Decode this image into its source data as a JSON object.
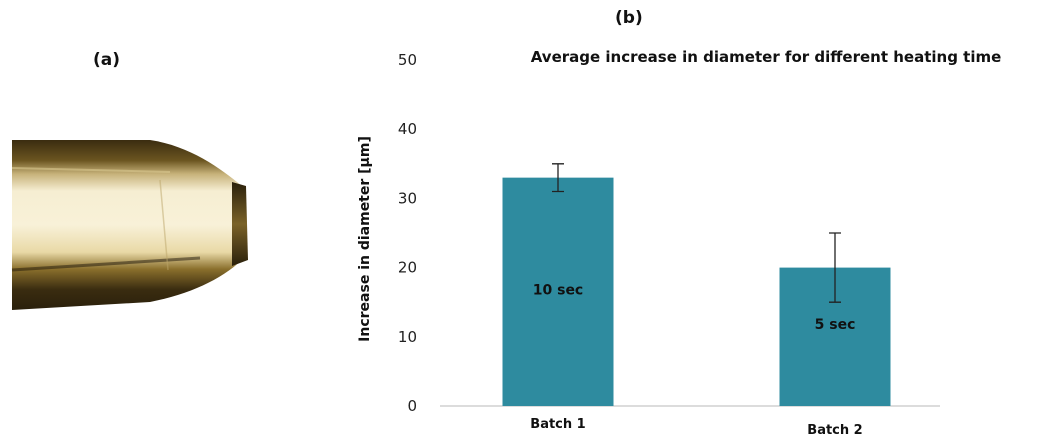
{
  "panels": {
    "a_label": "(a)",
    "b_label": "(b)"
  },
  "photo": {
    "icon": "glass-tube-tip-photo"
  },
  "colors": {
    "bar": "#2e8b9f",
    "axis": "#b8b8b8",
    "error": "#222222"
  },
  "chart_data": {
    "type": "bar",
    "title": "Average increase in  diameter for different heating time",
    "xlabel": "",
    "ylabel": "Increase in diameter [µm]",
    "ylim": [
      0,
      50
    ],
    "yticks": [
      0,
      10,
      20,
      30,
      40,
      50
    ],
    "grid": false,
    "categories": [
      "Batch 1",
      "Batch 2"
    ],
    "values": [
      33,
      20
    ],
    "error_low": [
      31,
      15
    ],
    "error_high": [
      35,
      25
    ],
    "bar_labels": [
      "10 sec",
      "5 sec"
    ]
  }
}
